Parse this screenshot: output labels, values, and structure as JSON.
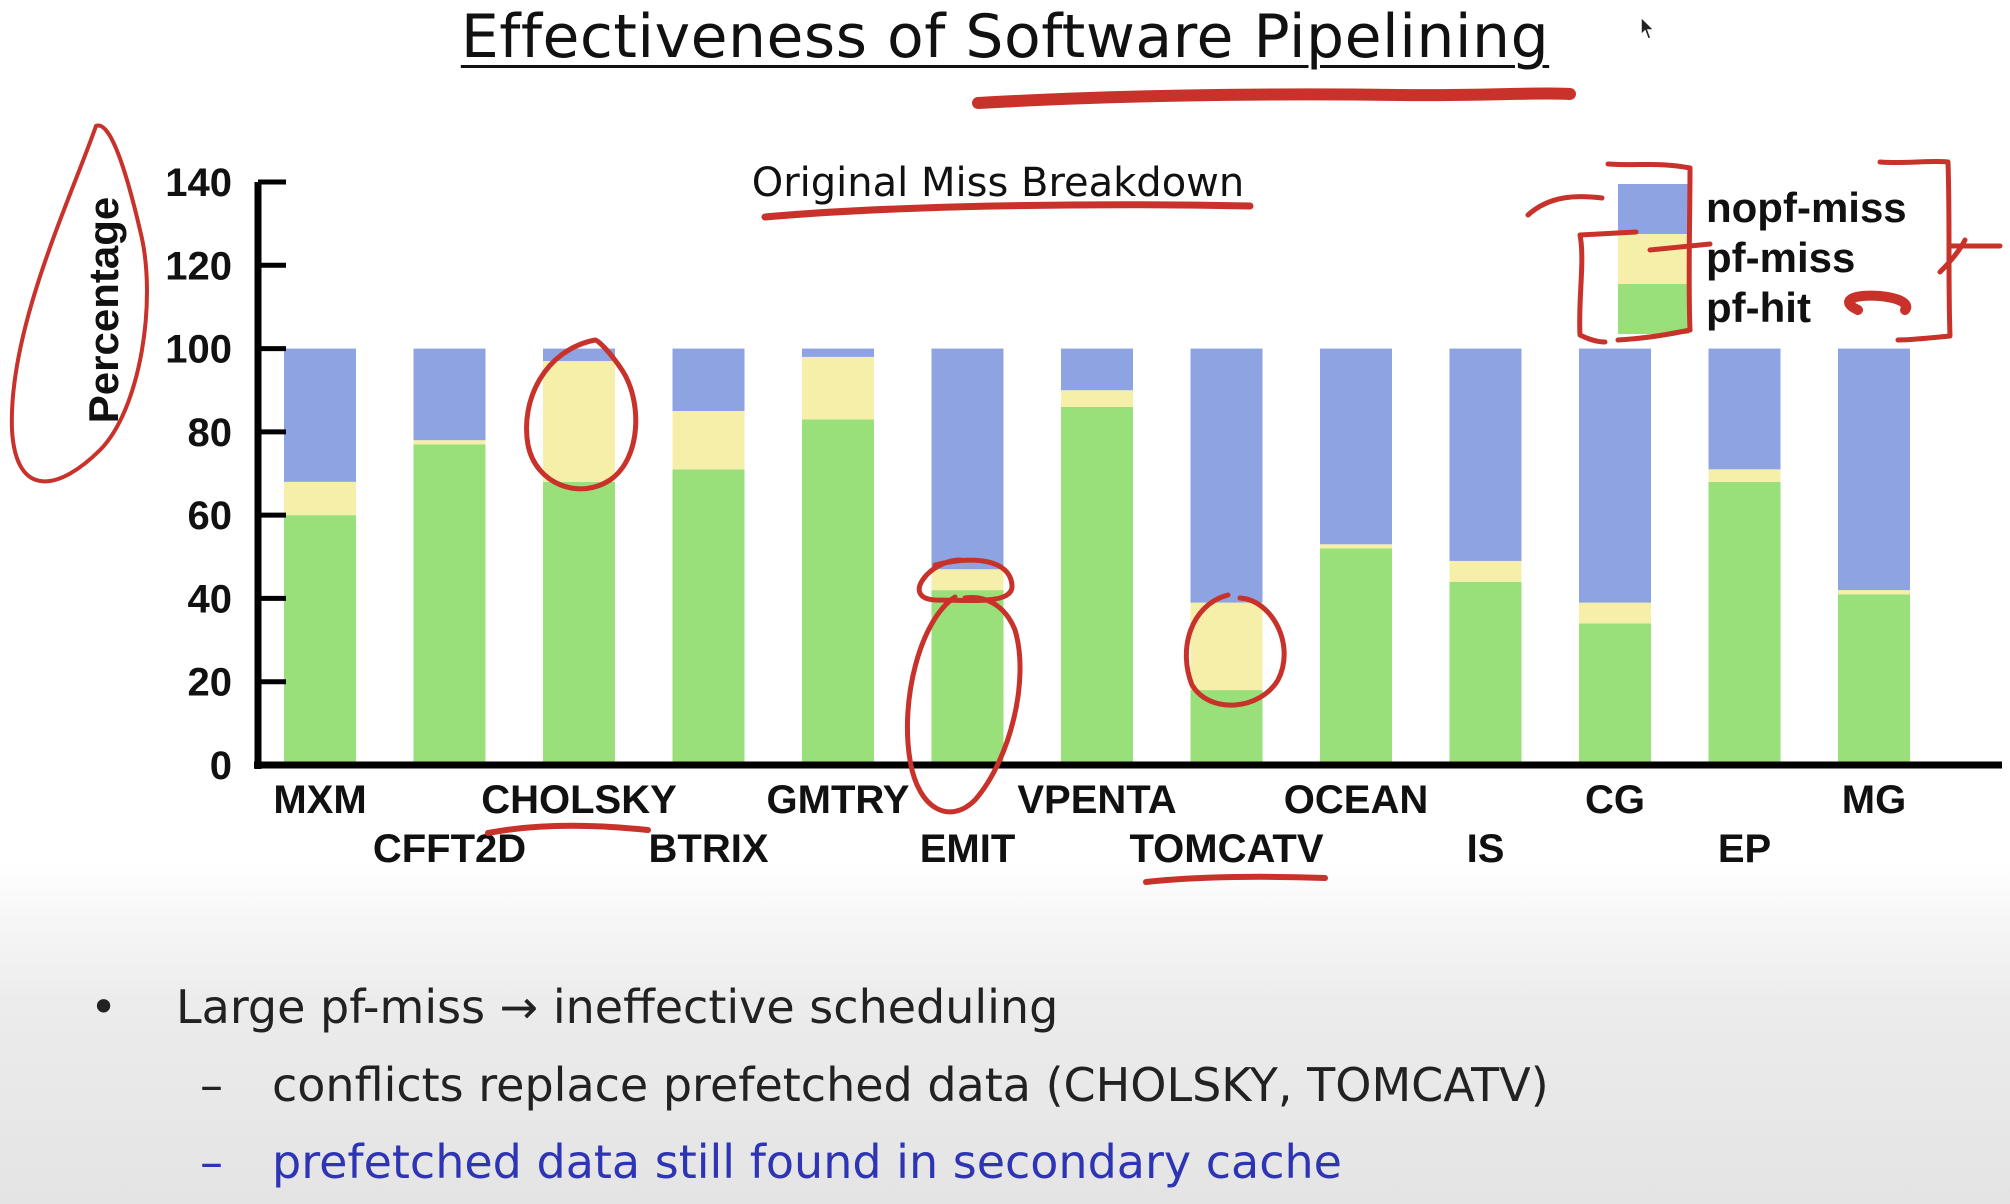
{
  "slide": {
    "title": "Effectiveness of Software Pipelining",
    "bullets": [
      {
        "marker": "•",
        "text": "Large pf-miss → ineffective scheduling"
      },
      {
        "marker": "–",
        "text": "conflicts replace prefetched data (CHOLSKY, TOMCATV)"
      },
      {
        "marker": "–",
        "text": "prefetched data still found in secondary cache"
      }
    ]
  },
  "colors": {
    "nopf_miss": "#8ea3e2",
    "pf_miss": "#f6efaa",
    "pf_hit": "#9ae07a",
    "annotation": "#c8322a",
    "link_text": "#2e35b5"
  },
  "chart_data": {
    "type": "bar",
    "stacked": true,
    "title": "Original Miss Breakdown",
    "xlabel": "",
    "ylabel": "Percentage",
    "ylim": [
      0,
      140
    ],
    "yticks": [
      0,
      20,
      40,
      60,
      80,
      100,
      120,
      140
    ],
    "grid": false,
    "legend_position": "top-right",
    "categories": [
      "MXM",
      "CFFT2D",
      "CHOLSKY",
      "BTRIX",
      "GMTRY",
      "EMIT",
      "VPENTA",
      "TOMCATV",
      "OCEAN",
      "IS",
      "CG",
      "EP",
      "MG"
    ],
    "series": [
      {
        "name": "pf-hit",
        "color": "#9ae07a",
        "values": [
          60,
          77,
          68,
          71,
          83,
          42,
          86,
          18,
          52,
          44,
          34,
          68,
          41
        ]
      },
      {
        "name": "pf-miss",
        "color": "#f6efaa",
        "values": [
          8,
          1,
          29,
          14,
          15,
          5,
          4,
          21,
          1,
          5,
          5,
          3,
          1
        ]
      },
      {
        "name": "nopf-miss",
        "color": "#8ea3e2",
        "values": [
          32,
          22,
          3,
          15,
          2,
          53,
          10,
          61,
          47,
          51,
          61,
          29,
          58
        ]
      }
    ],
    "legend_order": [
      "nopf-miss",
      "pf-miss",
      "pf-hit"
    ]
  }
}
